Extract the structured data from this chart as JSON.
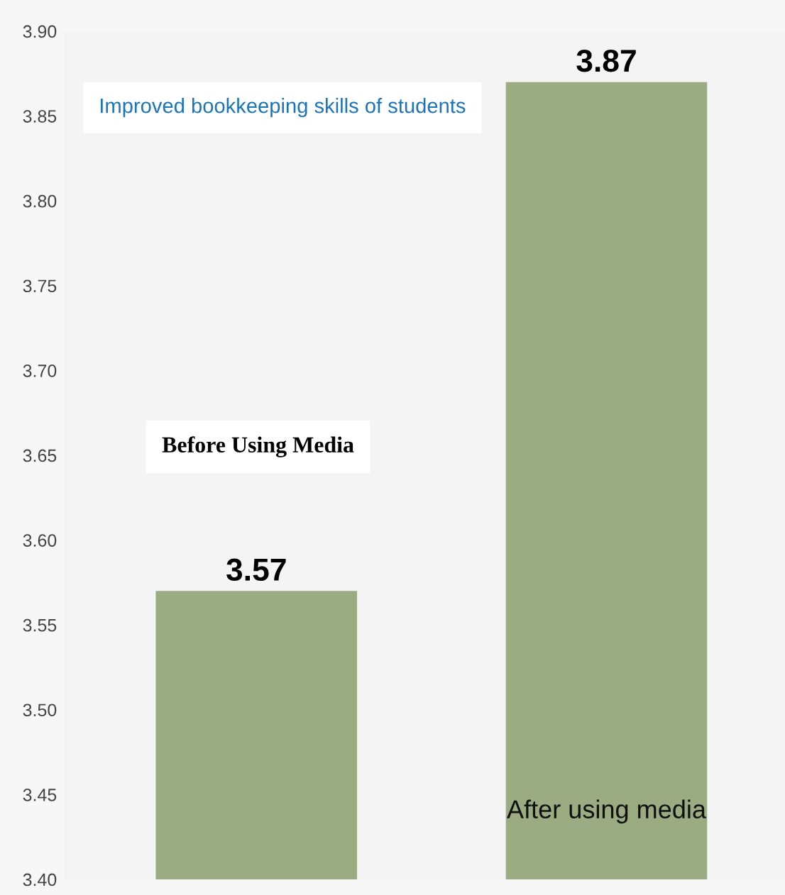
{
  "chart_data": {
    "type": "bar",
    "title": "Improved bookkeeping skills of students",
    "categories": [
      "Before Using Media",
      "After using media"
    ],
    "values": [
      3.57,
      3.87
    ],
    "color": "#9bab82",
    "ylim": [
      3.4,
      3.9
    ],
    "yticks": [
      {
        "value": 3.4,
        "label": "3.40"
      },
      {
        "value": 3.45,
        "label": "3.45"
      },
      {
        "value": 3.5,
        "label": "3.50"
      },
      {
        "value": 3.55,
        "label": "3.55"
      },
      {
        "value": 3.6,
        "label": "3.60"
      },
      {
        "value": 3.65,
        "label": "3.65"
      },
      {
        "value": 3.7,
        "label": "3.70"
      },
      {
        "value": 3.75,
        "label": "3.75"
      },
      {
        "value": 3.8,
        "label": "3.80"
      },
      {
        "value": 3.85,
        "label": "3.85"
      },
      {
        "value": 3.9,
        "label": "3.90"
      }
    ],
    "data_labels": true,
    "grid": false,
    "legend": false
  }
}
